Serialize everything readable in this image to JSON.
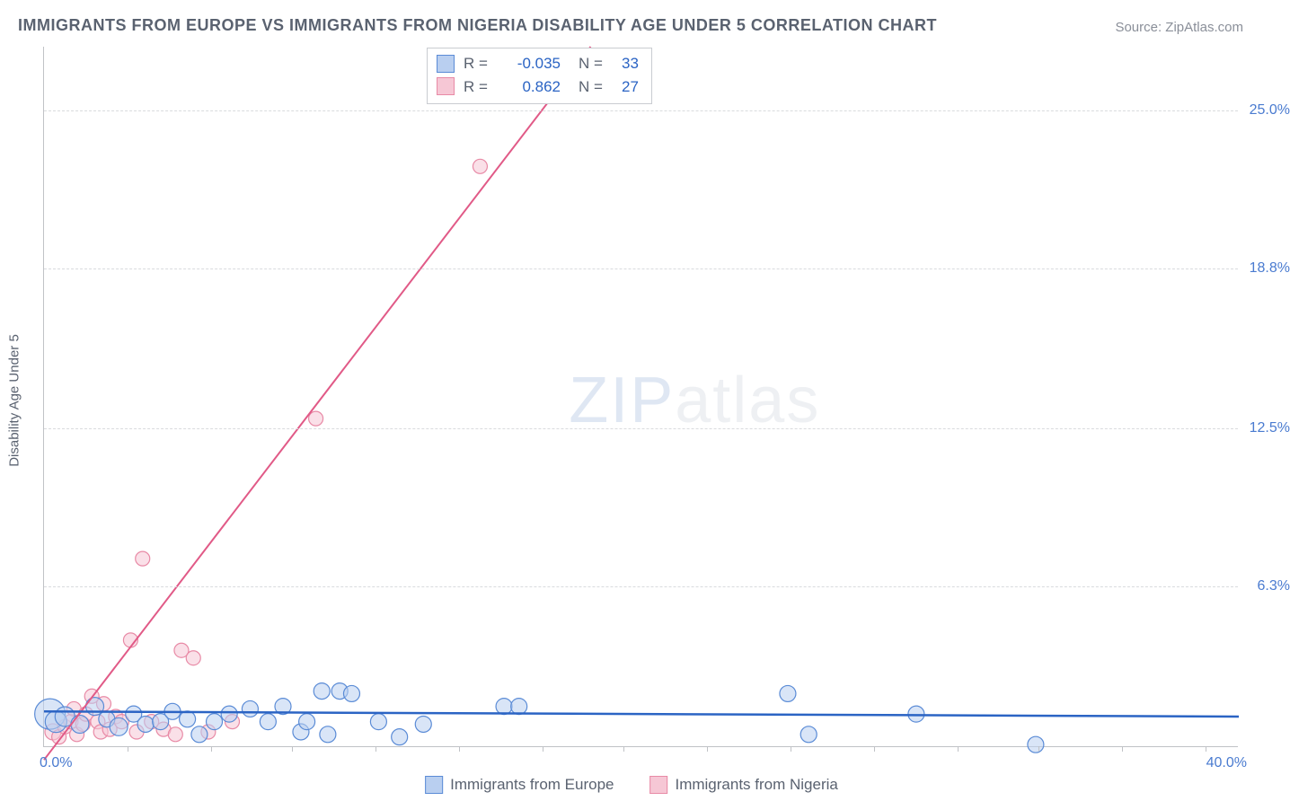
{
  "title": "IMMIGRANTS FROM EUROPE VS IMMIGRANTS FROM NIGERIA DISABILITY AGE UNDER 5 CORRELATION CHART",
  "source": "Source: ZipAtlas.com",
  "ylabel": "Disability Age Under 5",
  "watermark": {
    "prefix": "ZIP",
    "suffix": "atlas"
  },
  "chart": {
    "type": "scatter",
    "xlim": [
      0,
      40
    ],
    "ylim": [
      0,
      27.5
    ],
    "yticks": [
      {
        "v": 6.3,
        "label": "6.3%"
      },
      {
        "v": 12.5,
        "label": "12.5%"
      },
      {
        "v": 18.8,
        "label": "18.8%"
      },
      {
        "v": 25.0,
        "label": "25.0%"
      }
    ],
    "xtick_min": "0.0%",
    "xtick_max": "40.0%",
    "x_minor_ticks": [
      2.8,
      5.6,
      8.3,
      11.1,
      13.9,
      16.7,
      19.4,
      22.2,
      25.0,
      27.8,
      30.6,
      33.3,
      36.1,
      38.9
    ],
    "grid_color": "#d9dbde",
    "background_color": "#ffffff",
    "axis_color": "#c0c2c6"
  },
  "series": {
    "europe": {
      "label": "Immigrants from Europe",
      "color_fill": "#b9cff0",
      "color_stroke": "#5a8bd6",
      "fill_opacity": 0.55,
      "R": "-0.035",
      "N": "33",
      "trend": {
        "x1": 0,
        "y1": 1.4,
        "x2": 40,
        "y2": 1.2,
        "color": "#2b64c4",
        "width": 2.5
      },
      "points": [
        {
          "x": 0.2,
          "y": 1.3,
          "r": 17
        },
        {
          "x": 0.4,
          "y": 1.0,
          "r": 12
        },
        {
          "x": 0.7,
          "y": 1.2,
          "r": 11
        },
        {
          "x": 1.2,
          "y": 0.9,
          "r": 10
        },
        {
          "x": 1.7,
          "y": 1.6,
          "r": 10
        },
        {
          "x": 2.1,
          "y": 1.1,
          "r": 9
        },
        {
          "x": 2.5,
          "y": 0.8,
          "r": 10
        },
        {
          "x": 3.0,
          "y": 1.3,
          "r": 9
        },
        {
          "x": 3.4,
          "y": 0.9,
          "r": 9
        },
        {
          "x": 3.9,
          "y": 1.0,
          "r": 9
        },
        {
          "x": 4.3,
          "y": 1.4,
          "r": 9
        },
        {
          "x": 4.8,
          "y": 1.1,
          "r": 9
        },
        {
          "x": 5.2,
          "y": 0.5,
          "r": 9
        },
        {
          "x": 5.7,
          "y": 1.0,
          "r": 9
        },
        {
          "x": 6.2,
          "y": 1.3,
          "r": 9
        },
        {
          "x": 6.9,
          "y": 1.5,
          "r": 9
        },
        {
          "x": 7.5,
          "y": 1.0,
          "r": 9
        },
        {
          "x": 8.0,
          "y": 1.6,
          "r": 9
        },
        {
          "x": 8.6,
          "y": 0.6,
          "r": 9
        },
        {
          "x": 8.8,
          "y": 1.0,
          "r": 9
        },
        {
          "x": 9.3,
          "y": 2.2,
          "r": 9
        },
        {
          "x": 9.5,
          "y": 0.5,
          "r": 9
        },
        {
          "x": 9.9,
          "y": 2.2,
          "r": 9
        },
        {
          "x": 10.3,
          "y": 2.1,
          "r": 9
        },
        {
          "x": 11.2,
          "y": 1.0,
          "r": 9
        },
        {
          "x": 11.9,
          "y": 0.4,
          "r": 9
        },
        {
          "x": 12.7,
          "y": 0.9,
          "r": 9
        },
        {
          "x": 15.4,
          "y": 1.6,
          "r": 9
        },
        {
          "x": 15.9,
          "y": 1.6,
          "r": 9
        },
        {
          "x": 24.9,
          "y": 2.1,
          "r": 9
        },
        {
          "x": 25.6,
          "y": 0.5,
          "r": 9
        },
        {
          "x": 29.2,
          "y": 1.3,
          "r": 9
        },
        {
          "x": 33.2,
          "y": 0.1,
          "r": 9
        }
      ]
    },
    "nigeria": {
      "label": "Immigrants from Nigeria",
      "color_fill": "#f6c7d5",
      "color_stroke": "#e88aa6",
      "fill_opacity": 0.55,
      "R": "0.862",
      "N": "27",
      "trend": {
        "x1": 0,
        "y1": -0.5,
        "x2": 18.3,
        "y2": 27.5,
        "color": "#e15a87",
        "width": 2
      },
      "points": [
        {
          "x": 0.3,
          "y": 0.6,
          "r": 9
        },
        {
          "x": 0.5,
          "y": 0.4,
          "r": 8
        },
        {
          "x": 0.7,
          "y": 0.8,
          "r": 8
        },
        {
          "x": 0.9,
          "y": 1.0,
          "r": 8
        },
        {
          "x": 1.0,
          "y": 1.5,
          "r": 8
        },
        {
          "x": 1.1,
          "y": 0.5,
          "r": 8
        },
        {
          "x": 1.3,
          "y": 0.9,
          "r": 8
        },
        {
          "x": 1.4,
          "y": 1.3,
          "r": 8
        },
        {
          "x": 1.6,
          "y": 2.0,
          "r": 8
        },
        {
          "x": 1.8,
          "y": 1.0,
          "r": 8
        },
        {
          "x": 1.9,
          "y": 0.6,
          "r": 8
        },
        {
          "x": 2.0,
          "y": 1.7,
          "r": 8
        },
        {
          "x": 2.2,
          "y": 0.7,
          "r": 8
        },
        {
          "x": 2.4,
          "y": 1.2,
          "r": 8
        },
        {
          "x": 2.6,
          "y": 1.0,
          "r": 8
        },
        {
          "x": 2.9,
          "y": 4.2,
          "r": 8
        },
        {
          "x": 3.1,
          "y": 0.6,
          "r": 8
        },
        {
          "x": 3.3,
          "y": 7.4,
          "r": 8
        },
        {
          "x": 3.6,
          "y": 1.0,
          "r": 8
        },
        {
          "x": 4.0,
          "y": 0.7,
          "r": 8
        },
        {
          "x": 4.4,
          "y": 0.5,
          "r": 8
        },
        {
          "x": 4.6,
          "y": 3.8,
          "r": 8
        },
        {
          "x": 5.0,
          "y": 3.5,
          "r": 8
        },
        {
          "x": 5.5,
          "y": 0.6,
          "r": 8
        },
        {
          "x": 6.3,
          "y": 1.0,
          "r": 8
        },
        {
          "x": 9.1,
          "y": 12.9,
          "r": 8
        },
        {
          "x": 14.6,
          "y": 22.8,
          "r": 8
        }
      ]
    }
  }
}
